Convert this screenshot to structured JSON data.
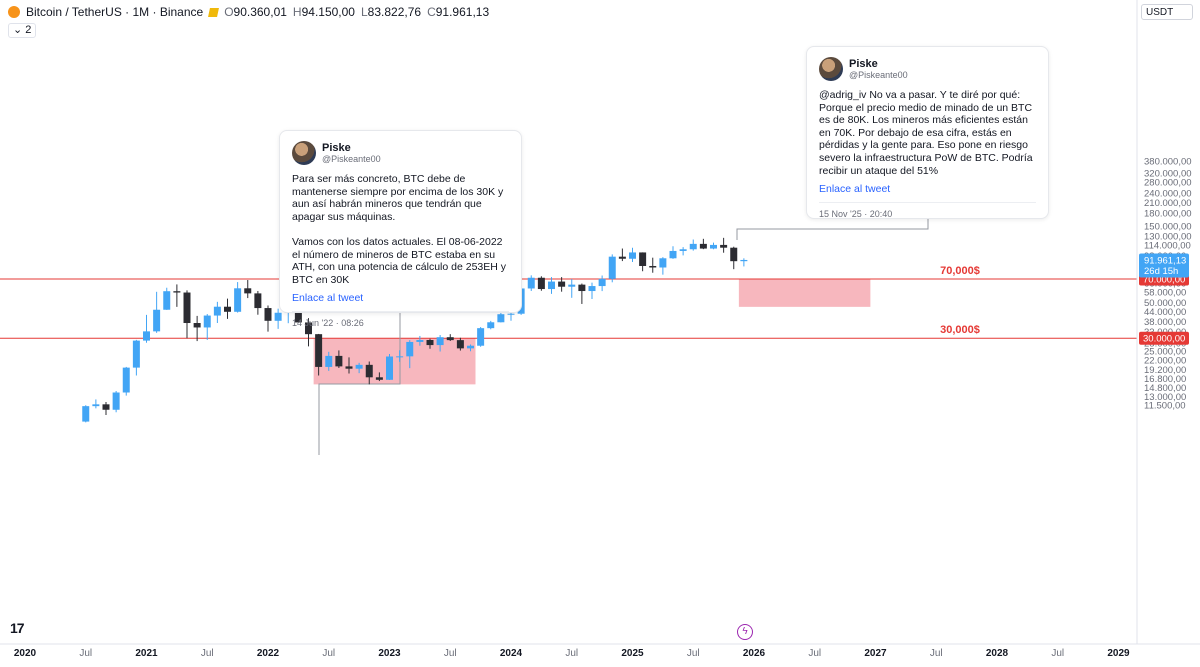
{
  "header": {
    "symbol": "Bitcoin / TetherUS · 1M · Binance",
    "open_key": "O",
    "open": "90.360,01",
    "high_key": "H",
    "high": "94.150,00",
    "low_key": "L",
    "low": "83.822,76",
    "close_key": "C",
    "close": "91.961,13",
    "indicator_count": "2",
    "currency": "USDT",
    "logo_icon": "bitcoin-logo-icon",
    "exchange_icon": "binance-flag-icon"
  },
  "colors": {
    "up": "#42a5f5",
    "down": "#2c2c32",
    "level_line": "#e53935",
    "zone": "#f7b3ba",
    "price_tag": "#e53935",
    "last_price_tag": "#42a5f5"
  },
  "tweets": [
    {
      "name": "Piske",
      "handle": "@Piskeante00",
      "text": "Para ser más concreto, BTC debe de mantenerse siempre por encima de los 30K y aun así habrán mineros que tendrán que apagar sus máquinas.\n\nVamos con los datos actuales. El 08-06-2022 el número de mineros de BTC estaba en su ATH, con una potencia de cálculo de 253EH y BTC en 30K",
      "link": "Enlace al tweet",
      "date": "14 Jun '22 · 08:26"
    },
    {
      "name": "Piske",
      "handle": "@Piskeante00",
      "text": "@adrig_iv No va a pasar. Y te diré por qué: Porque el precio medio de minado de un BTC es de 80K. Los mineros más eficientes están en 70K. Por debajo de esa cifra, estás en pérdidas y la gente para. Eso pone en riesgo severo la infraestructura PoW de BTC. Podría recibir un ataque del 51%",
      "link": "Enlace al tweet",
      "date": "15 Nov '25 · 20:40"
    }
  ],
  "footer": {
    "tv_logo": "17",
    "tv_logo_icon": "tradingview-logo-icon",
    "lightning_icon": "lightning-icon"
  },
  "chart_data": {
    "type": "candlestick",
    "scale": "log",
    "ylim": [
      11000,
      400000
    ],
    "xlim": [
      "2019-12",
      "2029-02"
    ],
    "y_ticks": [
      {
        "v": 11500,
        "label": "11.500,00"
      },
      {
        "v": 13000,
        "label": "13.000,00"
      },
      {
        "v": 14800,
        "label": "14.800,00"
      },
      {
        "v": 16800,
        "label": "16.800,00"
      },
      {
        "v": 19200,
        "label": "19.200,00"
      },
      {
        "v": 22000,
        "label": "22.000,00"
      },
      {
        "v": 25000,
        "label": "25.000,00"
      },
      {
        "v": 28000,
        "label": "28.000,00"
      },
      {
        "v": 33000,
        "label": "33.000,00"
      },
      {
        "v": 38000,
        "label": "38.000,00"
      },
      {
        "v": 44000,
        "label": "44.000,00"
      },
      {
        "v": 50000,
        "label": "50.000,00"
      },
      {
        "v": 58000,
        "label": "58.000,00"
      },
      {
        "v": 66000,
        "label": "66.000,00"
      },
      {
        "v": 76000,
        "label": "76.000,00"
      },
      {
        "v": 98000,
        "label": "98.000,00"
      },
      {
        "v": 114000,
        "label": "114.000,00"
      },
      {
        "v": 130000,
        "label": "130.000,00"
      },
      {
        "v": 150000,
        "label": "150.000,00"
      },
      {
        "v": 180000,
        "label": "180.000,00"
      },
      {
        "v": 210000,
        "label": "210.000,00"
      },
      {
        "v": 240000,
        "label": "240.000,00"
      },
      {
        "v": 280000,
        "label": "280.000,00"
      },
      {
        "v": 320000,
        "label": "320.000,00"
      },
      {
        "v": 380000,
        "label": "380.000,00"
      }
    ],
    "x_ticks": [
      {
        "t": "2020-01",
        "label": "2020",
        "bold": true
      },
      {
        "t": "2020-07",
        "label": "Jul",
        "bold": false
      },
      {
        "t": "2021-01",
        "label": "2021",
        "bold": true
      },
      {
        "t": "2021-07",
        "label": "Jul",
        "bold": false
      },
      {
        "t": "2022-01",
        "label": "2022",
        "bold": true
      },
      {
        "t": "2022-07",
        "label": "Jul",
        "bold": false
      },
      {
        "t": "2023-01",
        "label": "2023",
        "bold": true
      },
      {
        "t": "2023-07",
        "label": "Jul",
        "bold": false
      },
      {
        "t": "2024-01",
        "label": "2024",
        "bold": true
      },
      {
        "t": "2024-07",
        "label": "Jul",
        "bold": false
      },
      {
        "t": "2025-01",
        "label": "2025",
        "bold": true
      },
      {
        "t": "2025-07",
        "label": "Jul",
        "bold": false
      },
      {
        "t": "2026-01",
        "label": "2026",
        "bold": true
      },
      {
        "t": "2026-07",
        "label": "Jul",
        "bold": false
      },
      {
        "t": "2027-01",
        "label": "2027",
        "bold": true
      },
      {
        "t": "2027-07",
        "label": "Jul",
        "bold": false
      },
      {
        "t": "2028-01",
        "label": "2028",
        "bold": true
      },
      {
        "t": "2028-07",
        "label": "Jul",
        "bold": false
      },
      {
        "t": "2029-01",
        "label": "2029",
        "bold": true
      },
      {
        "t": "2029-07",
        "label": "Jul",
        "bold": false
      }
    ],
    "levels": [
      {
        "value": 70000,
        "label": "70,000$",
        "tag": "70.000,00"
      },
      {
        "value": 30000,
        "label": "30,000$",
        "tag": "30.000,00"
      }
    ],
    "last_price": {
      "value": 91961,
      "label": "91.961,13",
      "countdown": "26d 15h"
    },
    "zones": [
      {
        "from": "2022-06",
        "to": "2023-09",
        "low": 15500,
        "high": 30000
      },
      {
        "from": "2025-12",
        "to": "2026-12",
        "low": 47000,
        "high": 70000
      }
    ],
    "candles": [
      {
        "t": "2020-07",
        "o": 9100,
        "h": 11500,
        "l": 9000,
        "c": 11350
      },
      {
        "t": "2020-08",
        "o": 11350,
        "h": 12500,
        "l": 11000,
        "c": 11650
      },
      {
        "t": "2020-09",
        "o": 11650,
        "h": 12050,
        "l": 10000,
        "c": 10780
      },
      {
        "t": "2020-10",
        "o": 10780,
        "h": 14100,
        "l": 10400,
        "c": 13800
      },
      {
        "t": "2020-11",
        "o": 13800,
        "h": 19900,
        "l": 13200,
        "c": 19700
      },
      {
        "t": "2020-12",
        "o": 19700,
        "h": 29300,
        "l": 17600,
        "c": 29000
      },
      {
        "t": "2021-01",
        "o": 29000,
        "h": 41900,
        "l": 28100,
        "c": 33100
      },
      {
        "t": "2021-02",
        "o": 33100,
        "h": 58300,
        "l": 32400,
        "c": 45100
      },
      {
        "t": "2021-03",
        "o": 45100,
        "h": 61800,
        "l": 45000,
        "c": 58800
      },
      {
        "t": "2021-04",
        "o": 58800,
        "h": 64800,
        "l": 47000,
        "c": 57700
      },
      {
        "t": "2021-05",
        "o": 57700,
        "h": 59500,
        "l": 30000,
        "c": 37300
      },
      {
        "t": "2021-06",
        "o": 37300,
        "h": 41300,
        "l": 28800,
        "c": 35000
      },
      {
        "t": "2021-07",
        "o": 35000,
        "h": 42400,
        "l": 29300,
        "c": 41500
      },
      {
        "t": "2021-08",
        "o": 41500,
        "h": 50500,
        "l": 37300,
        "c": 47100
      },
      {
        "t": "2021-09",
        "o": 47100,
        "h": 52900,
        "l": 39600,
        "c": 43800
      },
      {
        "t": "2021-10",
        "o": 43800,
        "h": 67000,
        "l": 43300,
        "c": 61300
      },
      {
        "t": "2021-11",
        "o": 61300,
        "h": 69000,
        "l": 53300,
        "c": 57000
      },
      {
        "t": "2021-12",
        "o": 57000,
        "h": 59000,
        "l": 42000,
        "c": 46200
      },
      {
        "t": "2022-01",
        "o": 46200,
        "h": 47900,
        "l": 33000,
        "c": 38500
      },
      {
        "t": "2022-02",
        "o": 38500,
        "h": 45800,
        "l": 34300,
        "c": 43200
      },
      {
        "t": "2022-03",
        "o": 43200,
        "h": 48200,
        "l": 37200,
        "c": 45500
      },
      {
        "t": "2022-04",
        "o": 45500,
        "h": 47400,
        "l": 37500,
        "c": 37600
      },
      {
        "t": "2022-05",
        "o": 37600,
        "h": 40000,
        "l": 26700,
        "c": 31800
      },
      {
        "t": "2022-06",
        "o": 31800,
        "h": 31900,
        "l": 17600,
        "c": 19900
      },
      {
        "t": "2022-07",
        "o": 19900,
        "h": 24700,
        "l": 18800,
        "c": 23300
      },
      {
        "t": "2022-08",
        "o": 23300,
        "h": 25200,
        "l": 19600,
        "c": 20050
      },
      {
        "t": "2022-09",
        "o": 20050,
        "h": 22800,
        "l": 18100,
        "c": 19400
      },
      {
        "t": "2022-10",
        "o": 19400,
        "h": 21100,
        "l": 18200,
        "c": 20500
      },
      {
        "t": "2022-11",
        "o": 20500,
        "h": 21500,
        "l": 15500,
        "c": 17150
      },
      {
        "t": "2022-12",
        "o": 17150,
        "h": 18400,
        "l": 16250,
        "c": 16550
      },
      {
        "t": "2023-01",
        "o": 16550,
        "h": 23950,
        "l": 16500,
        "c": 23100
      },
      {
        "t": "2023-02",
        "o": 23100,
        "h": 25250,
        "l": 21400,
        "c": 23150
      },
      {
        "t": "2023-03",
        "o": 23150,
        "h": 29200,
        "l": 19550,
        "c": 28450
      },
      {
        "t": "2023-04",
        "o": 28450,
        "h": 31000,
        "l": 26950,
        "c": 29250
      },
      {
        "t": "2023-05",
        "o": 29250,
        "h": 29800,
        "l": 25800,
        "c": 27200
      },
      {
        "t": "2023-06",
        "o": 27200,
        "h": 31400,
        "l": 24800,
        "c": 30450
      },
      {
        "t": "2023-07",
        "o": 30450,
        "h": 31800,
        "l": 28850,
        "c": 29200
      },
      {
        "t": "2023-08",
        "o": 29200,
        "h": 30200,
        "l": 25150,
        "c": 25950
      },
      {
        "t": "2023-09",
        "o": 25950,
        "h": 27450,
        "l": 24900,
        "c": 26950
      },
      {
        "t": "2023-10",
        "o": 26950,
        "h": 35200,
        "l": 26550,
        "c": 34650
      },
      {
        "t": "2023-11",
        "o": 34650,
        "h": 38450,
        "l": 34100,
        "c": 37700
      },
      {
        "t": "2023-12",
        "o": 37700,
        "h": 44700,
        "l": 37600,
        "c": 42300
      },
      {
        "t": "2024-01",
        "o": 42300,
        "h": 48950,
        "l": 38550,
        "c": 42600
      },
      {
        "t": "2024-02",
        "o": 42600,
        "h": 64000,
        "l": 41900,
        "c": 61150
      },
      {
        "t": "2024-03",
        "o": 61150,
        "h": 73800,
        "l": 59000,
        "c": 71300
      },
      {
        "t": "2024-04",
        "o": 71300,
        "h": 72800,
        "l": 59200,
        "c": 60650
      },
      {
        "t": "2024-05",
        "o": 60650,
        "h": 71950,
        "l": 56550,
        "c": 67500
      },
      {
        "t": "2024-06",
        "o": 67500,
        "h": 71950,
        "l": 58400,
        "c": 62700
      },
      {
        "t": "2024-07",
        "o": 62700,
        "h": 70000,
        "l": 53500,
        "c": 64600
      },
      {
        "t": "2024-08",
        "o": 64600,
        "h": 65600,
        "l": 49000,
        "c": 58950
      },
      {
        "t": "2024-09",
        "o": 58950,
        "h": 66500,
        "l": 52550,
        "c": 63300
      },
      {
        "t": "2024-10",
        "o": 63300,
        "h": 73600,
        "l": 58900,
        "c": 70200
      },
      {
        "t": "2024-11",
        "o": 70200,
        "h": 99600,
        "l": 66800,
        "c": 96400
      },
      {
        "t": "2024-12",
        "o": 96400,
        "h": 108300,
        "l": 90500,
        "c": 93550
      },
      {
        "t": "2025-01",
        "o": 93550,
        "h": 109600,
        "l": 89250,
        "c": 102400
      },
      {
        "t": "2025-02",
        "o": 102400,
        "h": 102500,
        "l": 78250,
        "c": 84350
      },
      {
        "t": "2025-03",
        "o": 84350,
        "h": 95000,
        "l": 76600,
        "c": 82550
      },
      {
        "t": "2025-04",
        "o": 82550,
        "h": 95750,
        "l": 74500,
        "c": 94200
      },
      {
        "t": "2025-05",
        "o": 94200,
        "h": 111900,
        "l": 93400,
        "c": 104600
      },
      {
        "t": "2025-06",
        "o": 104600,
        "h": 110500,
        "l": 98200,
        "c": 107150
      },
      {
        "t": "2025-07",
        "o": 107150,
        "h": 123200,
        "l": 105100,
        "c": 115750
      },
      {
        "t": "2025-08",
        "o": 115750,
        "h": 124450,
        "l": 107350,
        "c": 108250
      },
      {
        "t": "2025-09",
        "o": 108250,
        "h": 117900,
        "l": 107250,
        "c": 114050
      },
      {
        "t": "2025-10",
        "o": 114050,
        "h": 126200,
        "l": 102000,
        "c": 109600
      },
      {
        "t": "2025-11",
        "o": 109600,
        "h": 111150,
        "l": 80600,
        "c": 90360
      },
      {
        "t": "2025-12",
        "o": 90360,
        "h": 94150,
        "l": 83822,
        "c": 91961
      }
    ]
  }
}
